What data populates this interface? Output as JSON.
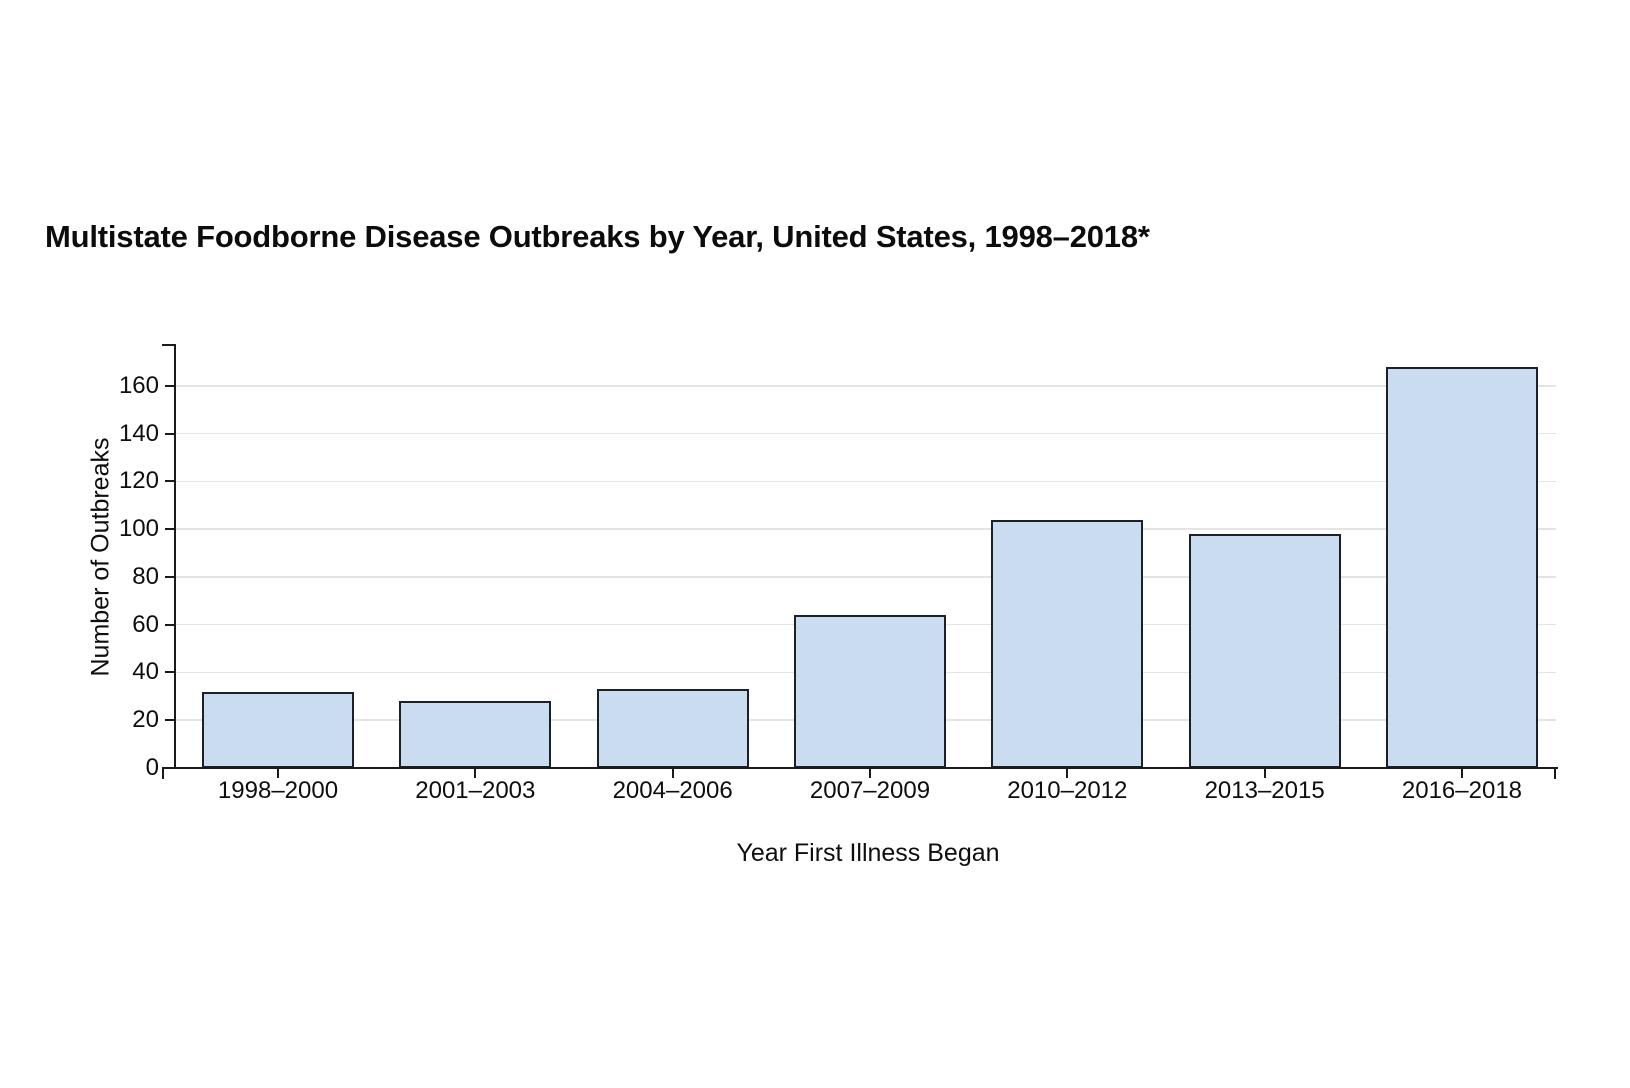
{
  "chart_data": {
    "type": "bar",
    "title": "Multistate Foodborne Disease Outbreaks by Year, United States, 1998–2018*",
    "xlabel": "Year First Illness Began",
    "ylabel": "Number of Outbreaks",
    "categories": [
      "1998–2000",
      "2001–2003",
      "2004–2006",
      "2007–2009",
      "2010–2012",
      "2013–2015",
      "2016–2018"
    ],
    "values": [
      32,
      28,
      33,
      64,
      104,
      98,
      168
    ],
    "ylim": [
      0,
      175
    ],
    "yticks": [
      0,
      20,
      40,
      60,
      80,
      100,
      120,
      140,
      160
    ],
    "grid": true,
    "legend": "none",
    "bar_fill": "#c9dcf0",
    "bar_stroke": "#1b2129",
    "axis_color": "#1a1a1a",
    "grid_color": "#e4e4e4",
    "text_color": "#0e0e0f",
    "background": "#ffffff"
  }
}
